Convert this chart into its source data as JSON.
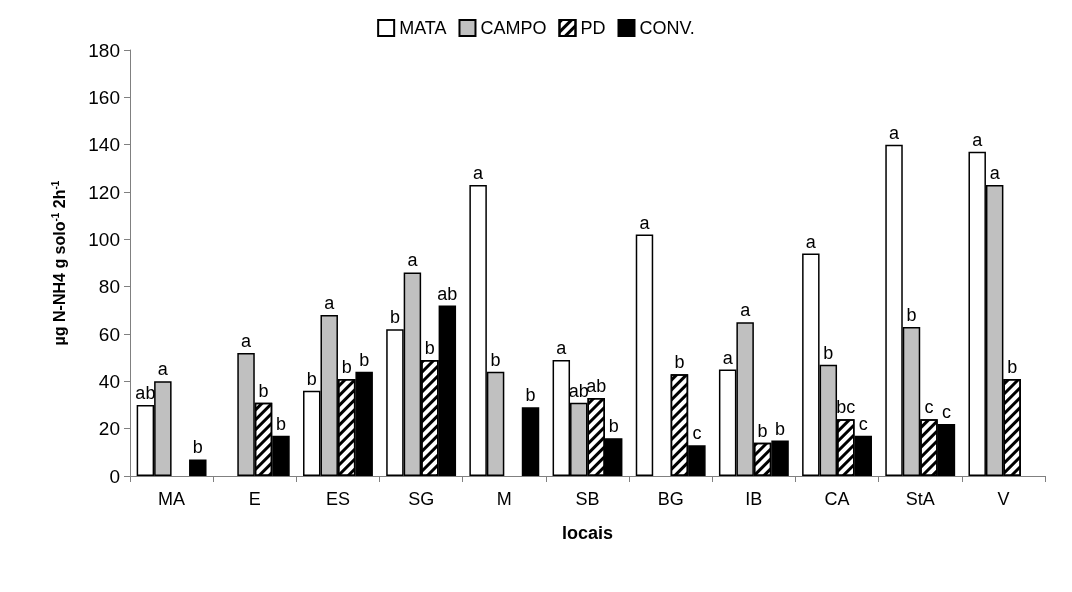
{
  "chart_data": {
    "type": "bar",
    "xlabel": "locais",
    "ylabel": "µg N-NH4 g solo$^{-1}$ 2h$^{-1}$",
    "categories": [
      "MA",
      "E",
      "ES",
      "SG",
      "M",
      "SB",
      "BG",
      "IB",
      "CA",
      "StA",
      "V"
    ],
    "series": [
      {
        "name": "MATA",
        "color": "#ffffff",
        "values": [
          30,
          null,
          36,
          62,
          123,
          49,
          102,
          45,
          94,
          140,
          137
        ],
        "value_labels": [
          "ab",
          null,
          "b",
          "b",
          "a",
          "a",
          "a",
          "a",
          "a",
          "a",
          "a"
        ]
      },
      {
        "name": "CAMPO",
        "color": "#c0c0c0",
        "values": [
          40,
          52,
          68,
          86,
          44,
          31,
          null,
          65,
          47,
          63,
          123
        ],
        "value_labels": [
          "a",
          "a",
          "a",
          "a",
          "b",
          "ab",
          null,
          "a",
          "b",
          "b",
          "a"
        ]
      },
      {
        "name": "PD",
        "color": "#ffffff",
        "values": [
          null,
          31,
          41,
          49,
          null,
          33,
          43,
          14,
          24,
          24,
          41
        ],
        "value_labels": [
          null,
          "b",
          "b",
          "b",
          null,
          "ab",
          "b",
          "b",
          "bc",
          "c",
          "b"
        ]
      },
      {
        "name": "CONV.",
        "color": "#000000",
        "values": [
          7,
          17,
          44,
          72,
          29,
          16,
          13,
          15,
          17,
          22,
          null
        ],
        "value_labels": [
          "b",
          "b",
          "b",
          "ab",
          "b",
          "b",
          "c",
          "b",
          "c",
          "c",
          null
        ]
      }
    ],
    "ylim": [
      0,
      180
    ],
    "yticks": [
      0,
      20,
      40,
      60,
      80,
      100,
      120,
      140,
      160,
      180
    ],
    "grid": false,
    "legend": "top"
  }
}
